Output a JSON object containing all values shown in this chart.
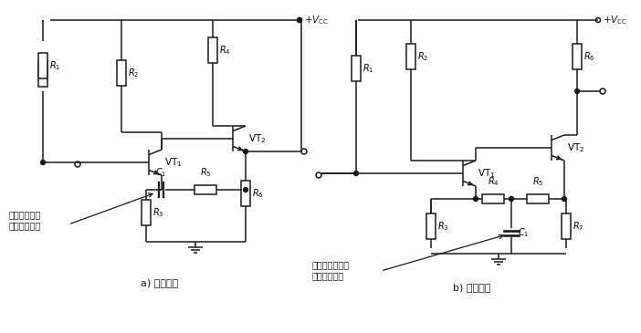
{
  "fig_width": 7.02,
  "fig_height": 3.65,
  "bg_color": "#ffffff",
  "line_color": "#1a1a1a",
  "line_width": 1.1,
  "label_a": "a) 交流反馈",
  "label_b": "b) 直流反馈",
  "annotation_a_line1": "直流反馈信号",
  "annotation_a_line2": "无法通过电容",
  "annotation_b_line1": "电容将交流反馈",
  "annotation_b_line2": "信号旁路到地"
}
